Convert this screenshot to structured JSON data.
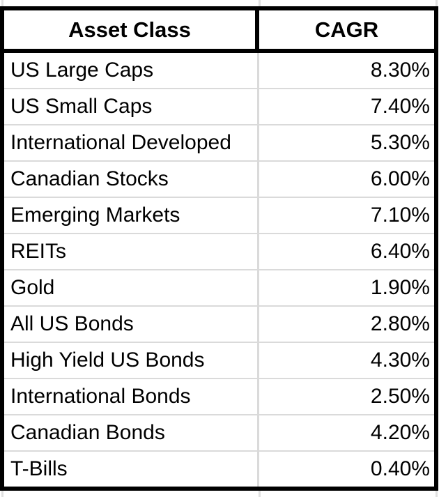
{
  "chart_data": {
    "type": "table",
    "columns": [
      "Asset Class",
      "CAGR"
    ],
    "rows": [
      {
        "asset_class": "US Large Caps",
        "cagr": "8.30%",
        "cagr_percent": 8.3
      },
      {
        "asset_class": "US Small Caps",
        "cagr": "7.40%",
        "cagr_percent": 7.4
      },
      {
        "asset_class": "International Developed",
        "cagr": "5.30%",
        "cagr_percent": 5.3
      },
      {
        "asset_class": "Canadian Stocks",
        "cagr": "6.00%",
        "cagr_percent": 6.0
      },
      {
        "asset_class": "Emerging Markets",
        "cagr": "7.10%",
        "cagr_percent": 7.1
      },
      {
        "asset_class": "REITs",
        "cagr": "6.40%",
        "cagr_percent": 6.4
      },
      {
        "asset_class": "Gold",
        "cagr": "1.90%",
        "cagr_percent": 1.9
      },
      {
        "asset_class": "All US Bonds",
        "cagr": "2.80%",
        "cagr_percent": 2.8
      },
      {
        "asset_class": "High Yield US Bonds",
        "cagr": "4.30%",
        "cagr_percent": 4.3
      },
      {
        "asset_class": "International Bonds",
        "cagr": "2.50%",
        "cagr_percent": 2.5
      },
      {
        "asset_class": "Canadian Bonds",
        "cagr": "4.20%",
        "cagr_percent": 4.2
      },
      {
        "asset_class": "T-Bills",
        "cagr": "0.40%",
        "cagr_percent": 0.4
      }
    ]
  },
  "colors": {
    "border_black": "#000000",
    "sheet_gridline_gray": "#e0e0e0",
    "row_divider_gray": "#dadada",
    "background": "#ffffff"
  }
}
